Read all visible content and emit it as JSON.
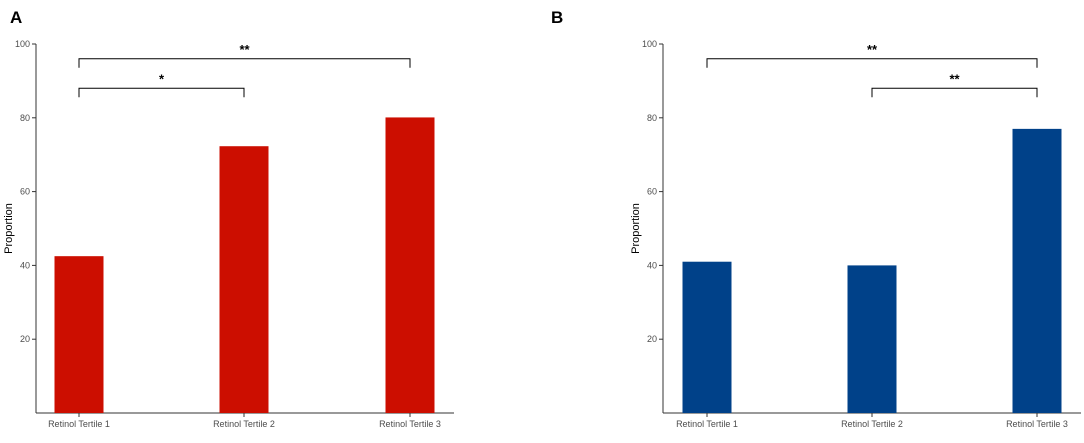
{
  "chart_data": [
    {
      "panel_label": "A",
      "type": "bar",
      "categories": [
        "Retinol Tertile 1",
        "Retinol Tertile 2",
        "Retinol Tertile 3"
      ],
      "values": [
        42.5,
        72.3,
        80.1
      ],
      "ylabel": "Proportion",
      "xlabel": "",
      "ylim": [
        0,
        100
      ],
      "yticks": [
        20,
        40,
        60,
        80,
        100
      ],
      "color": "#cc0e00",
      "grid": false,
      "significance": [
        {
          "from": 0,
          "to": 1,
          "label": "*",
          "level": 88
        },
        {
          "from": 0,
          "to": 2,
          "label": "**",
          "level": 96
        }
      ]
    },
    {
      "panel_label": "B",
      "type": "bar",
      "categories": [
        "Retinol Tertile 1",
        "Retinol Tertile 2",
        "Retinol Tertile 3"
      ],
      "values": [
        41.0,
        40.0,
        77.0
      ],
      "ylabel": "Proportion",
      "xlabel": "",
      "ylim": [
        0,
        100
      ],
      "yticks": [
        20,
        40,
        60,
        80,
        100
      ],
      "color": "#004189",
      "grid": false,
      "significance": [
        {
          "from": 1,
          "to": 2,
          "label": "**",
          "level": 88
        },
        {
          "from": 0,
          "to": 2,
          "label": "**",
          "level": 96
        }
      ]
    }
  ]
}
